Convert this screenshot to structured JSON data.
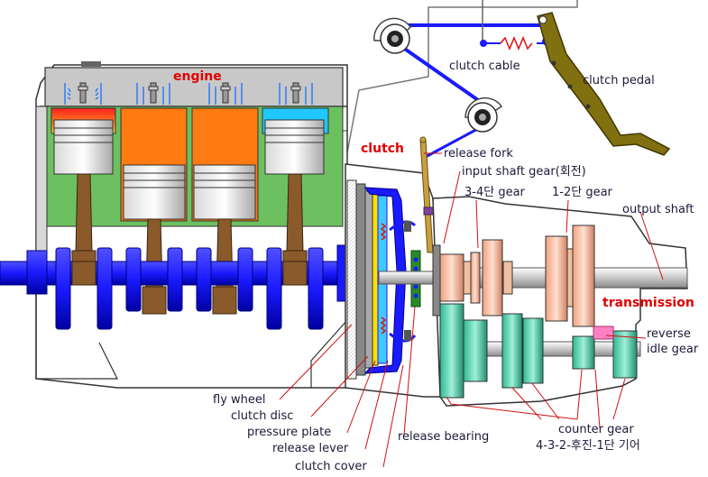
{
  "labels": {
    "engine": "engine",
    "clutch": "clutch",
    "transmission": "transmission",
    "clutch_cable": "clutch cable",
    "clutch_pedal": "clutch pedal",
    "release_fork": "release fork",
    "input_shaft_gear": "input shaft gear(회전)",
    "gear_34": "3-4단 gear",
    "gear_12": "1-2단 gear",
    "output_shaft": "output shaft",
    "reverse_idle_gear_1": "reverse",
    "reverse_idle_gear_2": "idle gear",
    "fly_wheel": "fly wheel",
    "clutch_disc": "clutch disc",
    "pressure_plate": "pressure plate",
    "release_lever": "release lever",
    "clutch_cover": "clutch cover",
    "release_bearing": "release bearing",
    "counter_gear_1": "counter gear",
    "counter_gear_2": "4-3-2-후진-1단 기어"
  },
  "colors": {
    "label_red": "#e00000",
    "label_text": "#1a1a3a",
    "crankshaft_blue": "#1a1aff",
    "block_gray": "#c8c8c8",
    "block_green": "#6cc060",
    "piston_red": "#ff2020",
    "piston_orange": "#ff7a10",
    "piston_cyan": "#20c8ff",
    "rod_brown": "#8b5a2b",
    "pedal_olive": "#807010",
    "gear_salmon": "#f0a080",
    "gear_teal": "#40c8a8",
    "gear_pink": "#ff80c0"
  }
}
